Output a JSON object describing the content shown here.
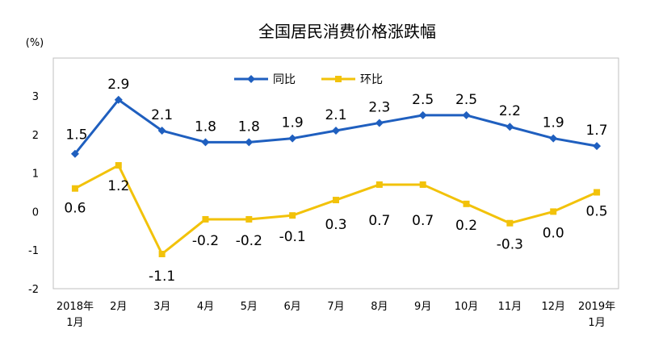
{
  "chart_data": {
    "type": "line",
    "title": "全国居民消费价格涨跌幅",
    "ylabel": "(%)",
    "categories": [
      "2018年\n1月",
      "2月",
      "3月",
      "4月",
      "5月",
      "6月",
      "7月",
      "8月",
      "9月",
      "10月",
      "11月",
      "12月",
      "2019年\n1月"
    ],
    "ylim": [
      -2,
      3
    ],
    "yticks": [
      3,
      2,
      1,
      0,
      -1,
      -2
    ],
    "legend_position": "top-center",
    "series": [
      {
        "name": "同比",
        "color": "#1f5fbf",
        "marker": "diamond",
        "values": [
          1.5,
          2.9,
          2.1,
          1.8,
          1.8,
          1.9,
          2.1,
          2.3,
          2.5,
          2.5,
          2.2,
          1.9,
          1.7
        ],
        "labels": [
          "1.5",
          "2.9",
          "2.1",
          "1.8",
          "1.8",
          "1.9",
          "2.1",
          "2.3",
          "2.5",
          "2.5",
          "2.2",
          "1.9",
          "1.7"
        ]
      },
      {
        "name": "环比",
        "color": "#f2c20a",
        "marker": "square",
        "values": [
          0.6,
          1.2,
          -1.1,
          -0.2,
          -0.2,
          -0.1,
          0.3,
          0.7,
          0.7,
          0.2,
          -0.3,
          0.0,
          0.5
        ],
        "labels": [
          "0.6",
          "1.2",
          "-1.1",
          "-0.2",
          "-0.2",
          "-0.1",
          "0.3",
          "0.7",
          "0.7",
          "0.2",
          "-0.3",
          "0.0",
          "0.5"
        ]
      }
    ]
  }
}
